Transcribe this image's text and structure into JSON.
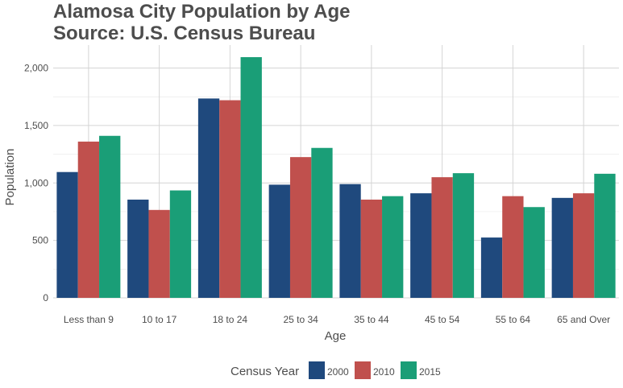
{
  "colors": {
    "2000": "#1f497d",
    "2010": "#c0504d",
    "2015": "#1a9e77"
  },
  "chart_data": {
    "type": "bar",
    "title_lines": [
      "Alamosa City Population by Age",
      "Source: U.S. Census Bureau"
    ],
    "xlabel": "Age",
    "ylabel": "Population",
    "ylim": [
      0,
      2200
    ],
    "yticks": [
      0,
      500,
      1000,
      1500,
      2000
    ],
    "ytick_labels": [
      "0",
      "500",
      "1,000",
      "1,500",
      "2,000"
    ],
    "grid": true,
    "legend": {
      "title": "Census Year",
      "placement": "bottom"
    },
    "categories": [
      "Less than 9",
      "10 to 17",
      "18 to 24",
      "25 to 34",
      "35 to 44",
      "45 to 54",
      "55 to 64",
      "65 and Over"
    ],
    "series": [
      {
        "name": "2000",
        "color": "#1f497d",
        "values": [
          1095,
          855,
          1735,
          985,
          990,
          910,
          525,
          870
        ]
      },
      {
        "name": "2010",
        "color": "#c0504d",
        "values": [
          1360,
          765,
          1720,
          1225,
          855,
          1050,
          885,
          910
        ]
      },
      {
        "name": "2015",
        "color": "#1a9e77",
        "values": [
          1410,
          935,
          2095,
          1305,
          885,
          1085,
          790,
          1080
        ]
      }
    ]
  }
}
